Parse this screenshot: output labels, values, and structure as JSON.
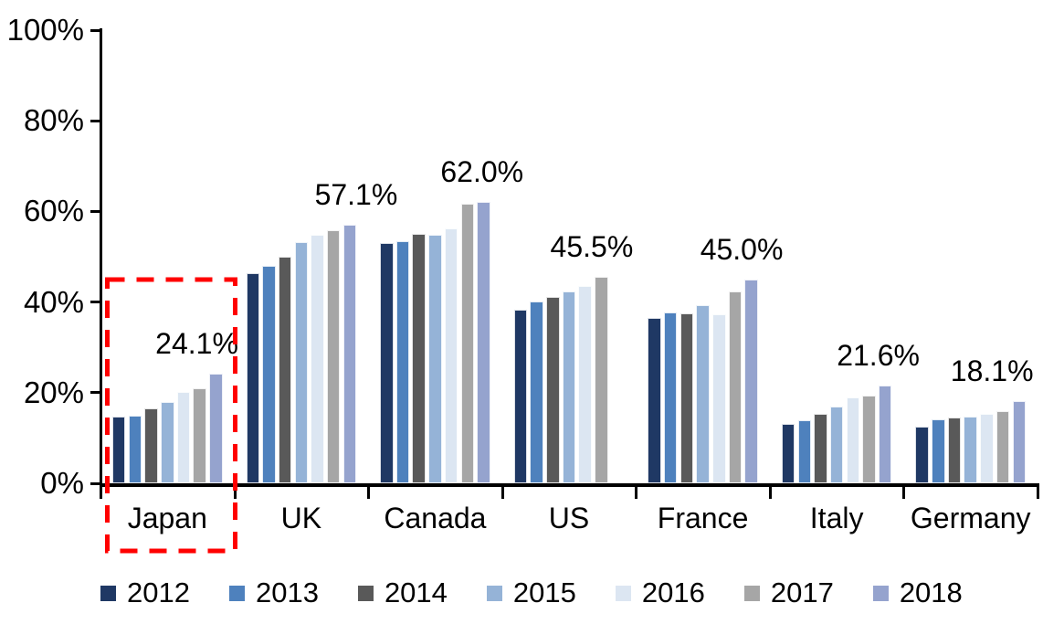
{
  "chart_data": {
    "type": "bar",
    "title": "",
    "categories": [
      "Japan",
      "UK",
      "Canada",
      "US",
      "France",
      "Italy",
      "Germany"
    ],
    "series": [
      {
        "name": "2012",
        "color": "#1F3864",
        "values": [
          14.8,
          46.4,
          53.1,
          38.3,
          36.5,
          13.2,
          12.5
        ]
      },
      {
        "name": "2013",
        "color": "#4E81BD",
        "values": [
          15.0,
          47.9,
          53.4,
          40.2,
          37.7,
          14.0,
          14.1
        ]
      },
      {
        "name": "2014",
        "color": "#595959",
        "values": [
          16.6,
          50.0,
          55.0,
          41.2,
          37.6,
          15.4,
          14.5
        ]
      },
      {
        "name": "2015",
        "color": "#95B3D7",
        "values": [
          18.0,
          53.3,
          54.8,
          42.4,
          39.4,
          16.9,
          14.8
        ]
      },
      {
        "name": "2016",
        "color": "#DCE6F2",
        "values": [
          20.1,
          54.9,
          56.2,
          43.6,
          37.4,
          19.0,
          15.4
        ]
      },
      {
        "name": "2017",
        "color": "#A6A6A6",
        "values": [
          21.0,
          55.8,
          61.7,
          45.5,
          42.4,
          19.3,
          15.9
        ]
      },
      {
        "name": "2018",
        "color": "#95A3CE",
        "values": [
          24.1,
          57.1,
          62.0,
          null,
          45.0,
          21.6,
          18.1
        ]
      }
    ],
    "data_labels": [
      "24.1%",
      "57.1%",
      "62.0%",
      "45.5%",
      "45.0%",
      "21.6%",
      "18.1%"
    ],
    "y_tick_labels": [
      "0%",
      "20%",
      "40%",
      "60%",
      "80%",
      "100%"
    ],
    "ylim": [
      0,
      100
    ],
    "grid": false,
    "legend_position": "bottom",
    "highlight_box": {
      "category": "Japan",
      "color": "#FF0000",
      "style": "dashed"
    },
    "label_x_pct": [
      72,
      91,
      85,
      67,
      79,
      81,
      66
    ]
  }
}
